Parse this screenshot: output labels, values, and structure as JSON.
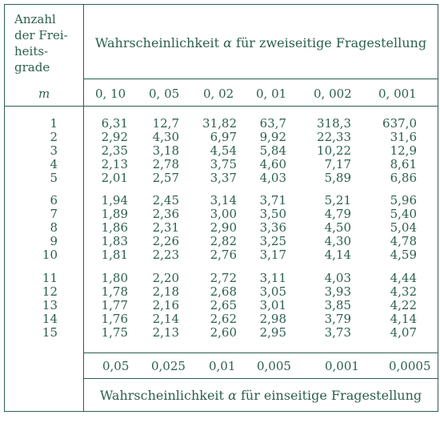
{
  "stub": {
    "line1": "Anzahl",
    "line2": "der Frei-",
    "line3": "heits-",
    "line4": "grade",
    "symbol": "m"
  },
  "heading_two_sided": {
    "prefix": "Wahrscheinlichkeit",
    "symbol": "α",
    "suffix": "für zweiseitige Fragestellung"
  },
  "heading_one_sided": {
    "prefix": "Wahrscheinlichkeit",
    "symbol": "α",
    "suffix": "für einseitige Fragestellung"
  },
  "alpha_two_sided": [
    "0, 10",
    "0, 05",
    "0, 02",
    "0, 01",
    "0, 002",
    "0, 001"
  ],
  "alpha_one_sided": [
    "0,05",
    "0,025",
    "0,01",
    "0,005",
    "0,001",
    "0,0005"
  ],
  "rows": [
    {
      "m": "1",
      "v": [
        "6,31",
        "12,7",
        "31,82",
        "63,7",
        "318,3",
        "637,0"
      ]
    },
    {
      "m": "2",
      "v": [
        "2,92",
        "4,30",
        "6,97",
        "9,92",
        "22,33",
        "31,6"
      ]
    },
    {
      "m": "3",
      "v": [
        "2,35",
        "3,18",
        "4,54",
        "5,84",
        "10,22",
        "12,9"
      ]
    },
    {
      "m": "4",
      "v": [
        "2,13",
        "2,78",
        "3,75",
        "4,60",
        "7,17",
        "8,61"
      ]
    },
    {
      "m": "5",
      "v": [
        "2,01",
        "2,57",
        "3,37",
        "4,03",
        "5,89",
        "6,86"
      ]
    },
    {
      "m": "6",
      "v": [
        "1,94",
        "2,45",
        "3,14",
        "3,71",
        "5,21",
        "5,96"
      ]
    },
    {
      "m": "7",
      "v": [
        "1,89",
        "2,36",
        "3,00",
        "3,50",
        "4,79",
        "5,40"
      ]
    },
    {
      "m": "8",
      "v": [
        "1,86",
        "2,31",
        "2,90",
        "3,36",
        "4,50",
        "5,04"
      ]
    },
    {
      "m": "9",
      "v": [
        "1,83",
        "2,26",
        "2,82",
        "3,25",
        "4,30",
        "4,78"
      ]
    },
    {
      "m": "10",
      "v": [
        "1,81",
        "2,23",
        "2,76",
        "3,17",
        "4,14",
        "4,59"
      ]
    },
    {
      "m": "11",
      "v": [
        "1,80",
        "2,20",
        "2,72",
        "3,11",
        "4,03",
        "4,44"
      ]
    },
    {
      "m": "12",
      "v": [
        "1,78",
        "2,18",
        "2,68",
        "3,05",
        "3,93",
        "4,32"
      ]
    },
    {
      "m": "13",
      "v": [
        "1,77",
        "2,16",
        "2,65",
        "3,01",
        "3,85",
        "4,22"
      ]
    },
    {
      "m": "14",
      "v": [
        "1,76",
        "2,14",
        "2,62",
        "2,98",
        "3,79",
        "4,14"
      ]
    },
    {
      "m": "15",
      "v": [
        "1,75",
        "2,13",
        "2,60",
        "2,95",
        "3,73",
        "4,07"
      ]
    }
  ]
}
